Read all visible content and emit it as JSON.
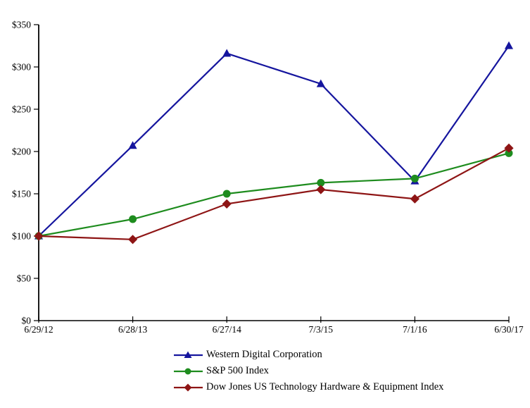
{
  "chart_data": {
    "type": "line",
    "categories": [
      "6/29/12",
      "6/28/13",
      "6/27/14",
      "7/3/15",
      "7/1/16",
      "6/30/17"
    ],
    "y_axis": {
      "min": 0,
      "max": 350,
      "step": 50,
      "prefix": "$",
      "tick_labels": [
        "$0",
        "$50",
        "$100",
        "$150",
        "$200",
        "$250",
        "$300",
        "$350"
      ]
    },
    "series": [
      {
        "name": "Western Digital Corporation",
        "marker": "triangle",
        "color": "#15159E",
        "values": [
          100,
          207,
          316,
          280,
          165,
          325
        ]
      },
      {
        "name": "S&P 500 Index",
        "marker": "circle",
        "color": "#1E8C1E",
        "values": [
          100,
          120,
          150,
          163,
          168,
          198
        ]
      },
      {
        "name": "Dow Jones US Technology Hardware & Equipment Index",
        "marker": "diamond",
        "color": "#8E1515",
        "values": [
          100,
          96,
          138,
          155,
          144,
          204
        ]
      }
    ],
    "legend_position": "bottom",
    "grid": false,
    "axis_color": "#000000",
    "background": "#FFFFFF"
  }
}
